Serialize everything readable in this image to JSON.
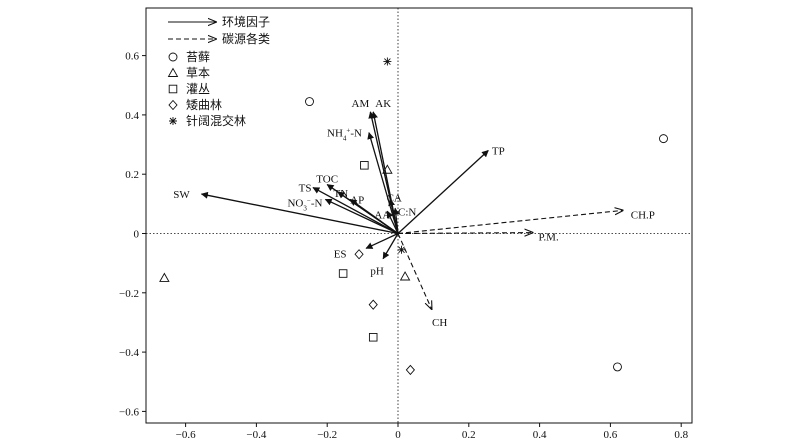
{
  "chart_data": {
    "type": "scatter",
    "title": "",
    "xlabel": "",
    "ylabel": "",
    "xlim": [
      -0.7,
      0.82
    ],
    "ylim": [
      -0.62,
      0.76
    ],
    "xticks": [
      -0.6,
      -0.4,
      -0.2,
      0,
      0.2,
      0.4,
      0.6,
      0.8
    ],
    "xtick_labels": [
      "−0.6",
      "−0.4",
      "−0.2",
      "0",
      "0.2",
      "0.4",
      "0.6",
      "0.8"
    ],
    "yticks": [
      -0.6,
      -0.4,
      -0.2,
      0,
      0.2,
      0.4,
      0.6
    ],
    "ytick_labels": [
      "−0.6",
      "−0.4",
      "−0.2",
      "0",
      "0.2",
      "0.4",
      "0.6"
    ],
    "grid": false,
    "zero_lines": true,
    "legend_placement": "top-left",
    "legend": {
      "arrow_solid": "环境因子",
      "arrow_dashed": "碳源各类",
      "markers": [
        {
          "shape": "circle",
          "label": "苔藓"
        },
        {
          "shape": "triangle",
          "label": "草本"
        },
        {
          "shape": "square",
          "label": "灌丛"
        },
        {
          "shape": "diamond",
          "label": "矮曲林"
        },
        {
          "shape": "asterisk",
          "label": "针阔混交林"
        }
      ]
    },
    "env_vectors": [
      {
        "label": "SW",
        "x": -0.555,
        "y": 0.133
      },
      {
        "label": "AM",
        "x": -0.078,
        "y": 0.41
      },
      {
        "label": "AK",
        "x": -0.07,
        "y": 0.41
      },
      {
        "label": "NH4+-N",
        "x": -0.082,
        "y": 0.34
      },
      {
        "label": "TP",
        "x": 0.255,
        "y": 0.28
      },
      {
        "label": "TS",
        "x": -0.24,
        "y": 0.155
      },
      {
        "label": "TOC",
        "x": -0.2,
        "y": 0.165
      },
      {
        "label": "TN",
        "x": -0.17,
        "y": 0.14
      },
      {
        "label": "NO3−-N",
        "x": -0.205,
        "y": 0.115
      },
      {
        "label": "AP",
        "x": -0.135,
        "y": 0.115
      },
      {
        "label": "CA",
        "x": -0.022,
        "y": 0.115
      },
      {
        "label": "AA",
        "x": -0.03,
        "y": 0.075
      },
      {
        "label": "C:N",
        "x": -0.008,
        "y": 0.085
      },
      {
        "label": "ES",
        "x": -0.09,
        "y": -0.05
      },
      {
        "label": "pH",
        "x": -0.042,
        "y": -0.085
      }
    ],
    "carbon_vectors": [
      {
        "label": "CH.P",
        "x": 0.635,
        "y": 0.078
      },
      {
        "label": "P.M.",
        "x": 0.38,
        "y": 0.003
      },
      {
        "label": "CH",
        "x": 0.095,
        "y": -0.255
      }
    ],
    "points": [
      {
        "group": "苔藓",
        "shape": "circle",
        "x": -0.25,
        "y": 0.445
      },
      {
        "group": "苔藓",
        "shape": "circle",
        "x": 0.75,
        "y": 0.32
      },
      {
        "group": "苔藓",
        "shape": "circle",
        "x": 0.62,
        "y": -0.45
      },
      {
        "group": "草本",
        "shape": "triangle",
        "x": -0.66,
        "y": -0.15
      },
      {
        "group": "草本",
        "shape": "triangle",
        "x": -0.03,
        "y": 0.215
      },
      {
        "group": "草本",
        "shape": "triangle",
        "x": 0.02,
        "y": -0.145
      },
      {
        "group": "灌丛",
        "shape": "square",
        "x": -0.095,
        "y": 0.23
      },
      {
        "group": "灌丛",
        "shape": "square",
        "x": -0.155,
        "y": -0.135
      },
      {
        "group": "灌丛",
        "shape": "square",
        "x": -0.07,
        "y": -0.35
      },
      {
        "group": "矮曲林",
        "shape": "diamond",
        "x": -0.11,
        "y": -0.07
      },
      {
        "group": "矮曲林",
        "shape": "diamond",
        "x": -0.07,
        "y": -0.24
      },
      {
        "group": "矮曲林",
        "shape": "diamond",
        "x": 0.035,
        "y": -0.46
      },
      {
        "group": "针阔混交林",
        "shape": "asterisk",
        "x": -0.03,
        "y": 0.58
      },
      {
        "group": "针阔混交林",
        "shape": "asterisk",
        "x": 0.01,
        "y": -0.055
      }
    ]
  }
}
